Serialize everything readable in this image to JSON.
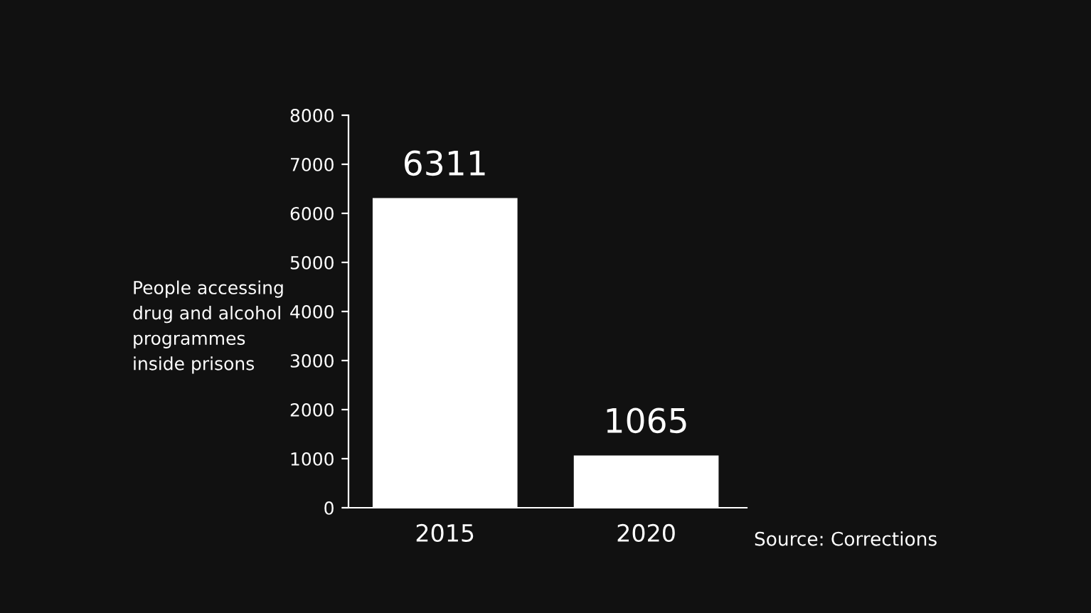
{
  "chart_data": {
    "type": "bar",
    "categories": [
      "2015",
      "2020"
    ],
    "values": [
      6311,
      1065
    ],
    "color": "#ffffff",
    "ylabel": "People accessing\ndrug and alcohol\nprogrammes\ninside prisons",
    "ylim": [
      0,
      8000
    ],
    "yticks": [
      0,
      1000,
      2000,
      3000,
      4000,
      5000,
      6000,
      7000,
      8000
    ],
    "data_labels": true,
    "grid": false,
    "annotations": [
      "Source: Corrections"
    ]
  }
}
